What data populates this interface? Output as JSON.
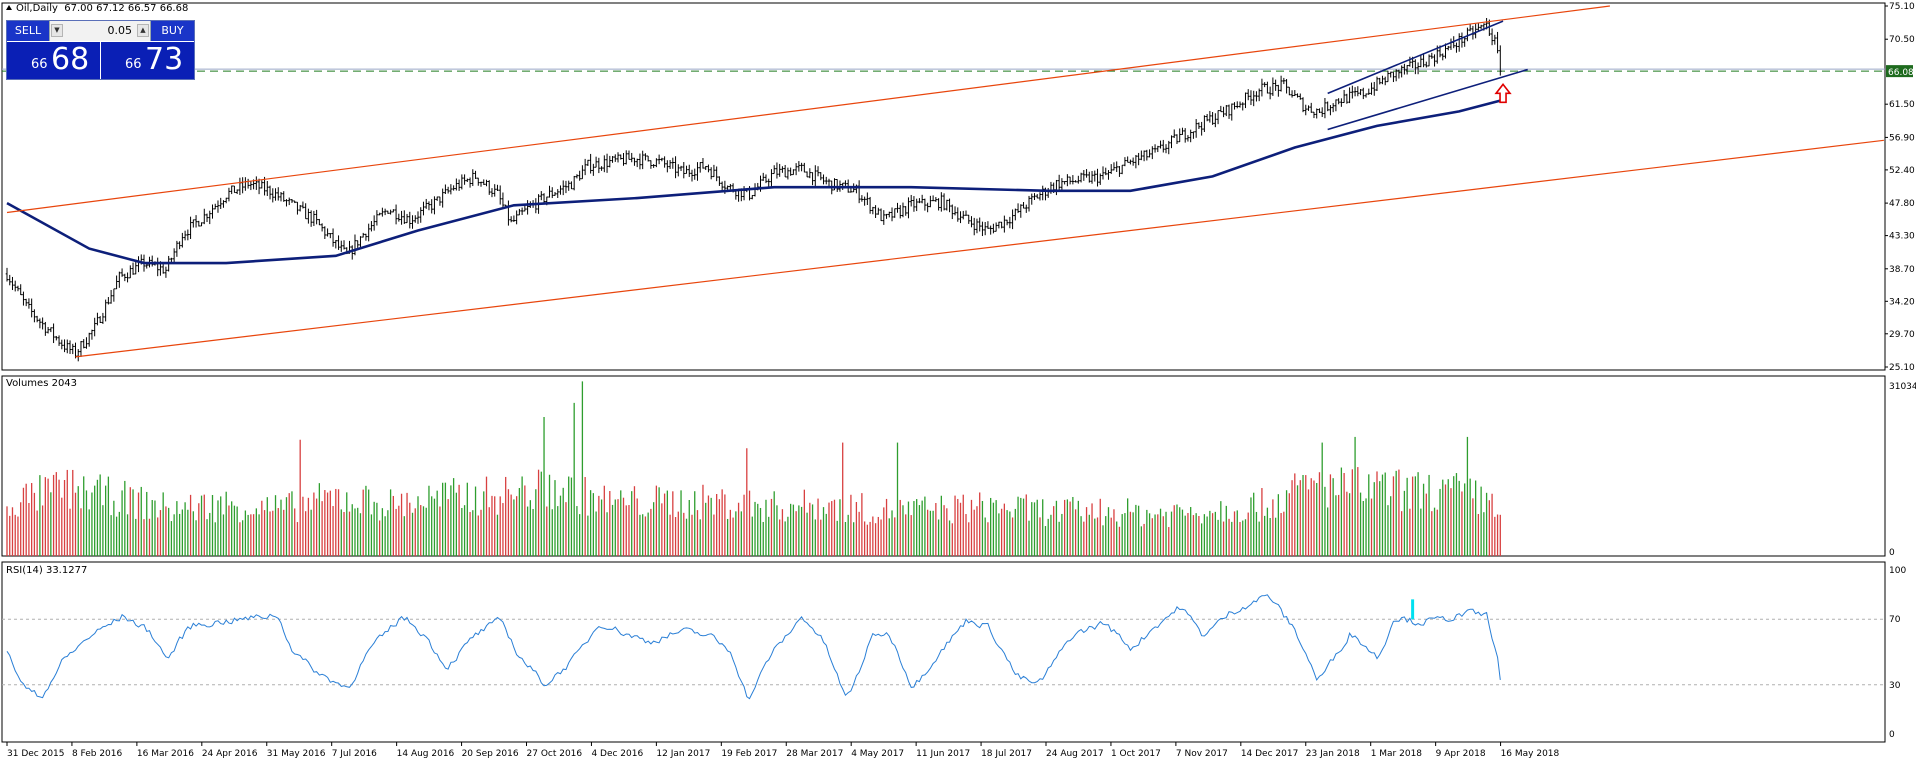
{
  "header": {
    "symbol": "Oil,Daily",
    "ohlc": "67.00 67.12 66.57 66.68"
  },
  "trade_panel": {
    "sell_label": "SELL",
    "buy_label": "BUY",
    "lot": "0.05",
    "sell_small": "66",
    "sell_big": "68",
    "buy_small": "66",
    "buy_big": "73"
  },
  "indicators": {
    "volumes_title": "Volumes 2043",
    "rsi_title": "RSI(14) 33.1277"
  },
  "chart_data": [
    {
      "type": "candlestick",
      "panel": "price",
      "x_labels": [
        "31 Dec 2015",
        "8 Feb 2016",
        "16 Mar 2016",
        "24 Apr 2016",
        "31 May 2016",
        "7 Jul 2016",
        "14 Aug 2016",
        "20 Sep 2016",
        "27 Oct 2016",
        "4 Dec 2016",
        "12 Jan 2017",
        "19 Feb 2017",
        "28 Mar 2017",
        "4 May 2017",
        "11 Jun 2017",
        "18 Jul 2017",
        "24 Aug 2017",
        "1 Oct 2017",
        "7 Nov 2017",
        "14 Dec 2017",
        "23 Jan 2018",
        "1 Mar 2018",
        "9 Apr 2018",
        "16 May 2018"
      ],
      "y_ticks": [
        "75.10",
        "70.50",
        "66.08",
        "61.50",
        "56.90",
        "52.40",
        "47.80",
        "43.30",
        "38.70",
        "34.20",
        "29.70",
        "25.10"
      ],
      "ylim": [
        25.1,
        75.1
      ],
      "current_price": 66.08,
      "close_path": [
        [
          0,
          38.0
        ],
        [
          7,
          33.5
        ],
        [
          13,
          31.0
        ],
        [
          21,
          28.0
        ],
        [
          25,
          27.0
        ],
        [
          32,
          30.5
        ],
        [
          41,
          37.5
        ],
        [
          50,
          39.5
        ],
        [
          58,
          38.5
        ],
        [
          64,
          43.5
        ],
        [
          72,
          46.0
        ],
        [
          80,
          49.0
        ],
        [
          88,
          50.5
        ],
        [
          96,
          49.5
        ],
        [
          104,
          47.5
        ],
        [
          112,
          45.5
        ],
        [
          119,
          42.5
        ],
        [
          124,
          40.5
        ],
        [
          130,
          43.5
        ],
        [
          139,
          47.0
        ],
        [
          147,
          45.5
        ],
        [
          155,
          47.5
        ],
        [
          163,
          50.0
        ],
        [
          171,
          51.5
        ],
        [
          179,
          49.0
        ],
        [
          184,
          45.0
        ],
        [
          190,
          47.0
        ],
        [
          198,
          49.0
        ],
        [
          206,
          50.5
        ],
        [
          212,
          53.0
        ],
        [
          220,
          53.5
        ],
        [
          229,
          54.0
        ],
        [
          238,
          53.5
        ],
        [
          247,
          52.0
        ],
        [
          255,
          53.0
        ],
        [
          263,
          50.0
        ],
        [
          271,
          49.0
        ],
        [
          280,
          52.0
        ],
        [
          290,
          52.5
        ],
        [
          300,
          50.5
        ],
        [
          310,
          49.5
        ],
        [
          320,
          45.5
        ],
        [
          330,
          47.5
        ],
        [
          341,
          48.0
        ],
        [
          350,
          45.5
        ],
        [
          358,
          44.0
        ],
        [
          367,
          46.0
        ],
        [
          375,
          48.5
        ],
        [
          383,
          50.5
        ],
        [
          391,
          51.0
        ],
        [
          400,
          51.5
        ],
        [
          410,
          53.5
        ],
        [
          420,
          55.0
        ],
        [
          428,
          57.0
        ],
        [
          437,
          59.0
        ],
        [
          447,
          61.0
        ],
        [
          457,
          63.5
        ],
        [
          466,
          64.0
        ],
        [
          474,
          61.0
        ],
        [
          479,
          60.5
        ],
        [
          485,
          62.0
        ],
        [
          495,
          63.0
        ],
        [
          505,
          65.5
        ],
        [
          515,
          67.0
        ],
        [
          525,
          69.0
        ],
        [
          535,
          71.5
        ],
        [
          540,
          72.5
        ],
        [
          543,
          70.0
        ],
        [
          545,
          66.7
        ]
      ],
      "series": [
        {
          "name": "",
          "type": "line",
          "color": "#0d1f7a",
          "role": "moving-average",
          "values": [
            [
              0,
              47.8
            ],
            [
              30,
              41.5
            ],
            [
              50,
              39.5
            ],
            [
              80,
              39.5
            ],
            [
              120,
              40.5
            ],
            [
              150,
              44.0
            ],
            [
              185,
              47.5
            ],
            [
              230,
              48.5
            ],
            [
              280,
              50.0
            ],
            [
              330,
              50.0
            ],
            [
              380,
              49.5
            ],
            [
              410,
              49.5
            ],
            [
              440,
              51.5
            ],
            [
              470,
              55.5
            ],
            [
              500,
              58.5
            ],
            [
              530,
              60.5
            ],
            [
              545,
              62.0
            ]
          ]
        },
        {
          "name": "",
          "type": "line",
          "color": "#e8450c",
          "role": "channel-upper",
          "values": [
            [
              0,
              46.5
            ],
            [
              585,
              75.1
            ]
          ]
        },
        {
          "name": "",
          "type": "line",
          "color": "#e8450c",
          "role": "channel-lower",
          "values": [
            [
              25,
              26.5
            ],
            [
              685,
              56.5
            ]
          ]
        },
        {
          "name": "",
          "type": "line",
          "color": "#0d1f7a",
          "role": "channel-short-upper",
          "values": [
            [
              482,
              63.0
            ],
            [
              546,
              73.0
            ]
          ]
        },
        {
          "name": "",
          "type": "line",
          "color": "#0d1f7a",
          "role": "channel-short-lower",
          "values": [
            [
              482,
              58.0
            ],
            [
              555,
              66.3
            ]
          ]
        }
      ],
      "annotations": [
        {
          "kind": "arrow-up",
          "color": "#e00000",
          "x": 546,
          "y": 63.0
        }
      ]
    },
    {
      "type": "bar",
      "panel": "volumes",
      "y_ticks": [
        "31034",
        "0"
      ],
      "ylim": [
        0,
        31034
      ],
      "envelope": [
        [
          0,
          11000
        ],
        [
          20,
          14500
        ],
        [
          40,
          12500
        ],
        [
          60,
          10000
        ],
        [
          80,
          11000
        ],
        [
          100,
          10000
        ],
        [
          120,
          12500
        ],
        [
          140,
          11000
        ],
        [
          160,
          12500
        ],
        [
          180,
          13000
        ],
        [
          200,
          14500
        ],
        [
          220,
          11500
        ],
        [
          240,
          11500
        ],
        [
          260,
          11500
        ],
        [
          280,
          10500
        ],
        [
          300,
          11000
        ],
        [
          320,
          9500
        ],
        [
          340,
          10000
        ],
        [
          360,
          10500
        ],
        [
          380,
          9500
        ],
        [
          400,
          9500
        ],
        [
          420,
          9000
        ],
        [
          440,
          10000
        ],
        [
          460,
          11000
        ],
        [
          475,
          15000
        ],
        [
          490,
          14500
        ],
        [
          510,
          14000
        ],
        [
          530,
          13500
        ],
        [
          545,
          11000
        ]
      ],
      "spikes": [
        [
          107,
          20500
        ],
        [
          196,
          24500
        ],
        [
          207,
          27000
        ],
        [
          210,
          30800
        ],
        [
          270,
          19000
        ],
        [
          305,
          20000
        ],
        [
          325,
          20000
        ],
        [
          480,
          20000
        ],
        [
          492,
          21000
        ],
        [
          533,
          21000
        ]
      ],
      "colors": {
        "up": "#2e9e2e",
        "down": "#d84040"
      }
    },
    {
      "type": "line",
      "panel": "rsi",
      "y_ticks": [
        "100",
        "70",
        "30",
        "0"
      ],
      "ylim": [
        0,
        100
      ],
      "levels": [
        70,
        30
      ],
      "color": "#2a7fd6",
      "values": [
        [
          0,
          48
        ],
        [
          6,
          28
        ],
        [
          12,
          22
        ],
        [
          20,
          45
        ],
        [
          30,
          60
        ],
        [
          42,
          72
        ],
        [
          52,
          62
        ],
        [
          58,
          45
        ],
        [
          66,
          66
        ],
        [
          76,
          68
        ],
        [
          86,
          70
        ],
        [
          98,
          73
        ],
        [
          104,
          50
        ],
        [
          114,
          36
        ],
        [
          124,
          28
        ],
        [
          132,
          52
        ],
        [
          144,
          72
        ],
        [
          152,
          60
        ],
        [
          160,
          40
        ],
        [
          170,
          60
        ],
        [
          180,
          70
        ],
        [
          186,
          48
        ],
        [
          196,
          30
        ],
        [
          206,
          45
        ],
        [
          216,
          68
        ],
        [
          224,
          62
        ],
        [
          234,
          56
        ],
        [
          246,
          63
        ],
        [
          256,
          60
        ],
        [
          264,
          50
        ],
        [
          270,
          20
        ],
        [
          278,
          48
        ],
        [
          290,
          72
        ],
        [
          298,
          55
        ],
        [
          306,
          20
        ],
        [
          316,
          62
        ],
        [
          322,
          60
        ],
        [
          330,
          28
        ],
        [
          340,
          50
        ],
        [
          350,
          70
        ],
        [
          358,
          65
        ],
        [
          368,
          35
        ],
        [
          376,
          30
        ],
        [
          388,
          60
        ],
        [
          400,
          68
        ],
        [
          410,
          52
        ],
        [
          418,
          65
        ],
        [
          428,
          78
        ],
        [
          436,
          60
        ],
        [
          446,
          74
        ],
        [
          460,
          85
        ],
        [
          470,
          62
        ],
        [
          478,
          32
        ],
        [
          490,
          62
        ],
        [
          500,
          46
        ],
        [
          506,
          72
        ],
        [
          514,
          68
        ],
        [
          524,
          70
        ],
        [
          534,
          74
        ],
        [
          540,
          72
        ],
        [
          545,
          33
        ]
      ],
      "marker": {
        "color": "#00e0f0",
        "x": 513,
        "y": 76
      }
    }
  ]
}
